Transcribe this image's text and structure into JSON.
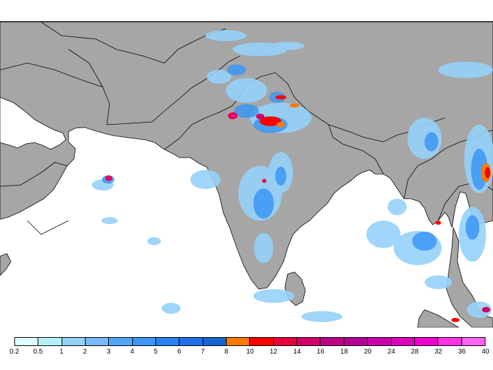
{
  "map": {
    "land_color": "#a6a6a6",
    "water_color": "#ffffff",
    "border_color": "#000000",
    "region": "South Asia / Arabian Sea / Bay of Bengal"
  },
  "legend": {
    "colors": [
      "#e0ffff",
      "#b4f0fa",
      "#96d2fa",
      "#78b9fa",
      "#50a5f5",
      "#3c97f5",
      "#2882f0",
      "#1e6eeb",
      "#1464d2",
      "#ff7800",
      "#ff0000",
      "#e6003c",
      "#d20064",
      "#be0082",
      "#b40096",
      "#c800aa",
      "#dc00be",
      "#f000d2",
      "#ff32e6",
      "#ff64f0"
    ],
    "ticks": [
      "0.2",
      "0.5",
      "1",
      "2",
      "3",
      "4",
      "5",
      "6",
      "7",
      "8",
      "10",
      "12",
      "14",
      "16",
      "18",
      "20",
      "24",
      "28",
      "32",
      "36",
      "40"
    ]
  }
}
